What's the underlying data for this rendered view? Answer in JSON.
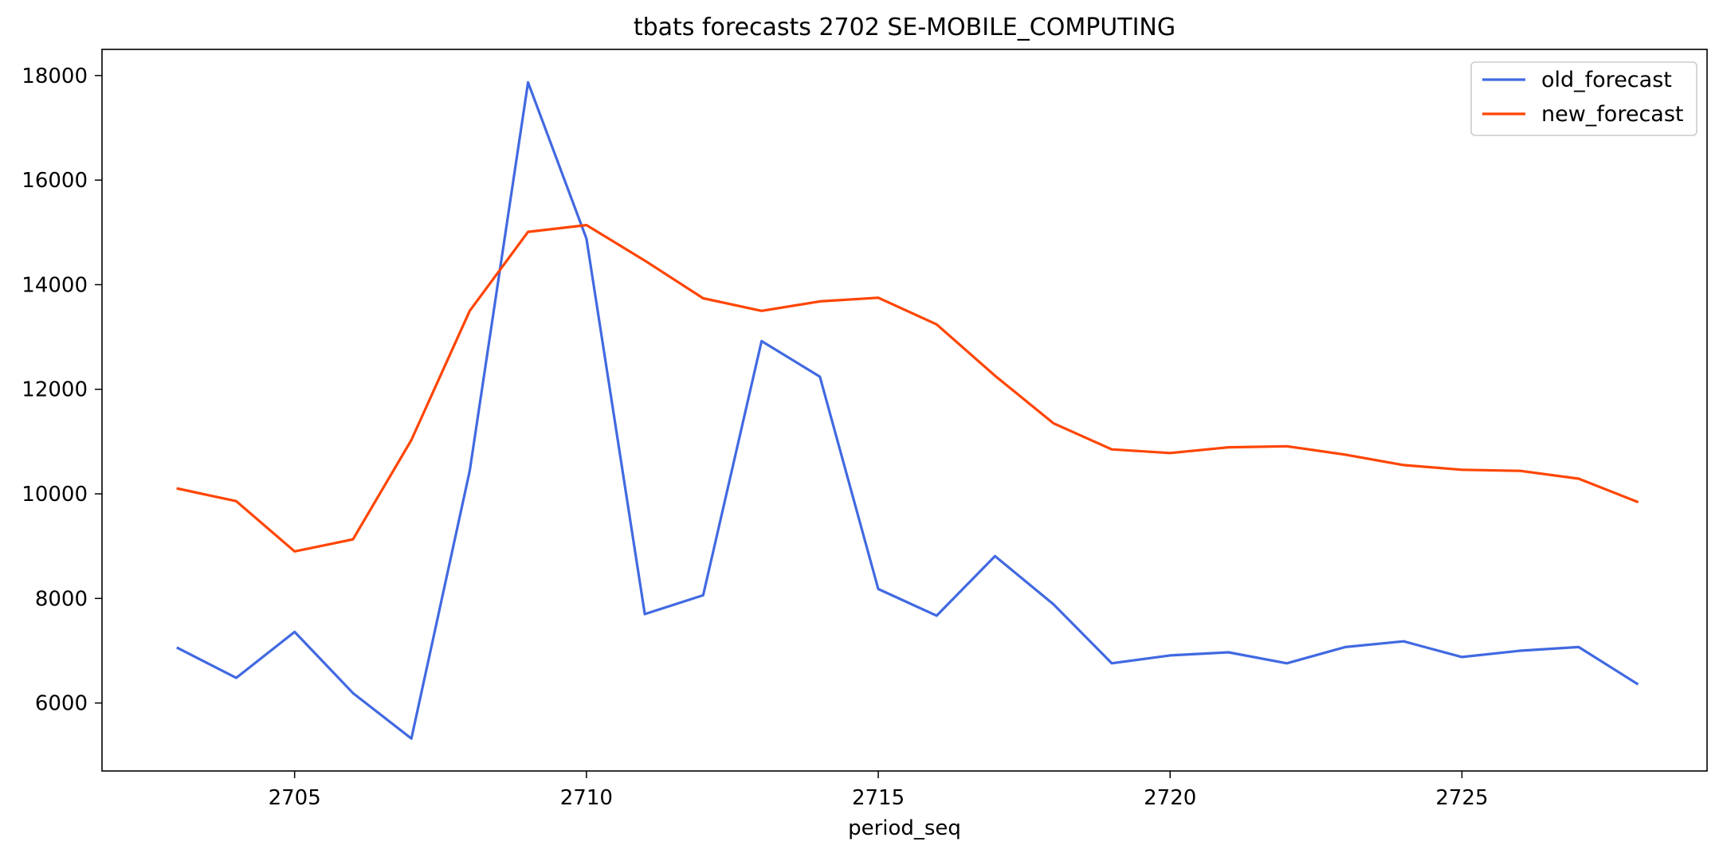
{
  "chart_data": {
    "type": "line",
    "title": "tbats forecasts 2702 SE-MOBILE_COMPUTING",
    "xlabel": "period_seq",
    "ylabel": "",
    "x": [
      2703,
      2704,
      2705,
      2706,
      2707,
      2708,
      2709,
      2710,
      2711,
      2712,
      2713,
      2714,
      2715,
      2716,
      2717,
      2718,
      2719,
      2720,
      2721,
      2722,
      2723,
      2724,
      2725,
      2726,
      2727,
      2728
    ],
    "series": [
      {
        "name": "old_forecast",
        "color": "#4169e1",
        "values": [
          7050,
          6480,
          7360,
          6190,
          5320,
          10440,
          17870,
          14880,
          7700,
          8060,
          12920,
          12240,
          8180,
          7670,
          8810,
          7890,
          6760,
          6910,
          6970,
          6760,
          7070,
          7180,
          6880,
          7000,
          7070,
          6370
        ]
      },
      {
        "name": "new_forecast",
        "color": "#ff4500",
        "values": [
          10100,
          9860,
          8900,
          9130,
          11030,
          13500,
          15010,
          15140,
          14460,
          13740,
          13500,
          13680,
          13750,
          13240,
          12260,
          11350,
          10850,
          10780,
          10890,
          10910,
          10750,
          10550,
          10460,
          10440,
          10290,
          9850
        ]
      }
    ],
    "xlim": [
      2701.7,
      2729.2
    ],
    "ylim": [
      4700,
      18500
    ],
    "xticks": [
      "2705",
      "2710",
      "2715",
      "2720",
      "2725"
    ],
    "yticks": [
      "6000",
      "8000",
      "10000",
      "12000",
      "14000",
      "16000",
      "18000"
    ],
    "grid": false,
    "legend_position": "top-right"
  }
}
